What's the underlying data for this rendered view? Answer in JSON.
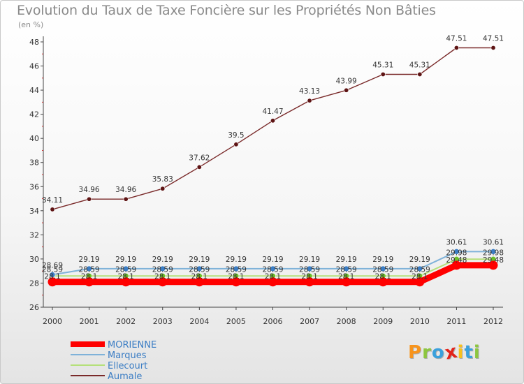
{
  "title": "Evolution du Taux de Taxe Foncière sur les Propriétés Non Bâties",
  "unit_label": "(en %)",
  "logo": {
    "text": "Proxiti",
    "letters": [
      "P",
      "r",
      "o",
      "x",
      "i",
      "t",
      "i"
    ],
    "colors": [
      "#f7941d",
      "#8dc63f",
      "#3aa0dc",
      "#e2231a",
      "#f7c01d",
      "#3aa0dc",
      "#8dc63f"
    ]
  },
  "chart_data": {
    "type": "line",
    "title": "Evolution du Taux de Taxe Foncière sur les Propriétés Non Bâties",
    "ylabel": "(en %)",
    "xlabel": "",
    "x": [
      "2000",
      "2001",
      "2002",
      "2003",
      "2004",
      "2005",
      "2006",
      "2007",
      "2008",
      "2009",
      "2010",
      "2011",
      "2012"
    ],
    "ylim": [
      26,
      48
    ],
    "yticks": [
      "26",
      "28",
      "30",
      "32",
      "34",
      "36",
      "38",
      "40",
      "42",
      "44",
      "46",
      "48"
    ],
    "grid": false,
    "legend_position": "bottom-left",
    "series": [
      {
        "name": "MORIENNE",
        "color": "#ff0000",
        "marker_color": "#ff0000",
        "values": [
          28.1,
          28.1,
          28.1,
          28.1,
          28.1,
          28.1,
          28.1,
          28.1,
          28.1,
          28.1,
          28.1,
          29.48,
          29.48
        ],
        "labels": [
          "28.1",
          "28.1",
          "28.1",
          "28.1",
          "28.1",
          "28.1",
          "28.1",
          "28.1",
          "28.1",
          "28.1",
          "28.1",
          "29.48",
          "29.48"
        ]
      },
      {
        "name": "Marques",
        "color": "#7fb2d9",
        "marker_color": "#3b7dc4",
        "values": [
          28.69,
          29.19,
          29.19,
          29.19,
          29.19,
          29.19,
          29.19,
          29.19,
          29.19,
          29.19,
          29.19,
          30.61,
          30.61
        ],
        "labels": [
          "28.69",
          "29.19",
          "29.19",
          "29.19",
          "29.19",
          "29.19",
          "29.19",
          "29.19",
          "29.19",
          "29.19",
          "29.19",
          "30.61",
          "30.61"
        ]
      },
      {
        "name": "Ellecourt",
        "color": "#b5e07a",
        "marker_color": "#6cbf2a",
        "values": [
          28.59,
          28.59,
          28.59,
          28.59,
          28.59,
          28.59,
          28.59,
          28.59,
          28.59,
          28.59,
          28.59,
          29.98,
          29.98
        ],
        "labels": [
          "28.59",
          "28.59",
          "28.59",
          "28.59",
          "28.59",
          "28.59",
          "28.59",
          "28.59",
          "28.59",
          "28.59",
          "28.59",
          "29.98",
          "29.98"
        ]
      },
      {
        "name": "Aumale",
        "color": "#7a2a2a",
        "marker_color": "#5e1414",
        "values": [
          34.11,
          34.96,
          34.96,
          35.83,
          37.62,
          39.5,
          41.47,
          43.13,
          43.99,
          45.31,
          45.31,
          47.51,
          47.51
        ],
        "labels": [
          "34.11",
          "34.96",
          "34.96",
          "35.83",
          "37.62",
          "39.5",
          "41.47",
          "43.13",
          "43.99",
          "45.31",
          "45.31",
          "47.51",
          "47.51"
        ]
      }
    ]
  }
}
